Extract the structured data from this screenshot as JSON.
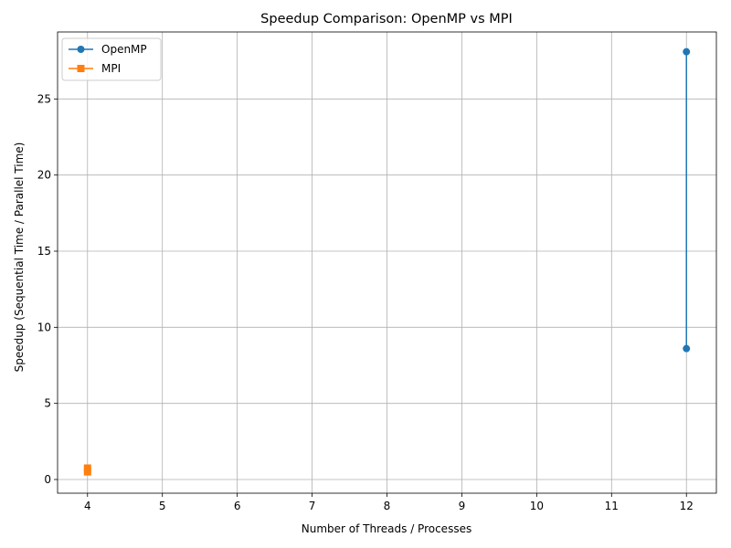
{
  "chart_data": {
    "type": "line",
    "title": "Speedup Comparison: OpenMP vs MPI",
    "xlabel": "Number of Threads / Processes",
    "ylabel": "Speedup (Sequential Time / Parallel Time)",
    "xlim": [
      3.6,
      12.4
    ],
    "ylim": [
      -0.9,
      29.4
    ],
    "xticks": [
      4,
      5,
      6,
      7,
      8,
      9,
      10,
      11,
      12
    ],
    "yticks": [
      0,
      5,
      10,
      15,
      20,
      25
    ],
    "grid": true,
    "legend_position": "top-left",
    "series": [
      {
        "name": "OpenMP",
        "color": "#1f77b4",
        "marker": "circle",
        "x": [
          12,
          12
        ],
        "y": [
          8.6,
          28.1
        ]
      },
      {
        "name": "MPI",
        "color": "#ff7f0e",
        "marker": "square",
        "x": [
          4,
          4
        ],
        "y": [
          0.5,
          0.75
        ]
      }
    ]
  }
}
